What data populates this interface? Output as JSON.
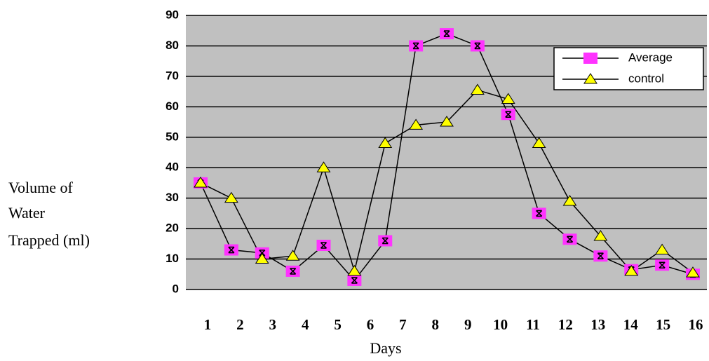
{
  "chart_data": {
    "type": "line",
    "ylabel": [
      "Volume of",
      "Water",
      "Trapped (ml)"
    ],
    "xlabel": "Days",
    "categories": [
      "1",
      "2",
      "3",
      "4",
      "5",
      "6",
      "7",
      "8",
      "9",
      "10",
      null,
      "11",
      "12",
      "13",
      "14",
      "15",
      "16"
    ],
    "series": [
      {
        "name": "Average",
        "color": "#ff33ff",
        "marker": "square",
        "values": [
          35,
          13,
          12,
          6,
          14.5,
          3,
          16,
          80,
          84,
          80,
          57.5,
          25,
          16.5,
          11,
          6.5,
          8,
          5
        ]
      },
      {
        "name": "control",
        "color": "#ffff00",
        "marker": "triangle",
        "values": [
          35,
          30,
          10,
          11,
          40,
          6,
          48,
          54,
          55,
          65.5,
          62.5,
          48,
          29,
          17.5,
          6,
          13,
          5.5
        ]
      }
    ],
    "ylim": [
      0,
      90
    ],
    "yticks": [
      0,
      10,
      20,
      30,
      40,
      50,
      60,
      70,
      80,
      90
    ],
    "grid": true,
    "legend": "upper right",
    "background": "#c0c0c0"
  }
}
